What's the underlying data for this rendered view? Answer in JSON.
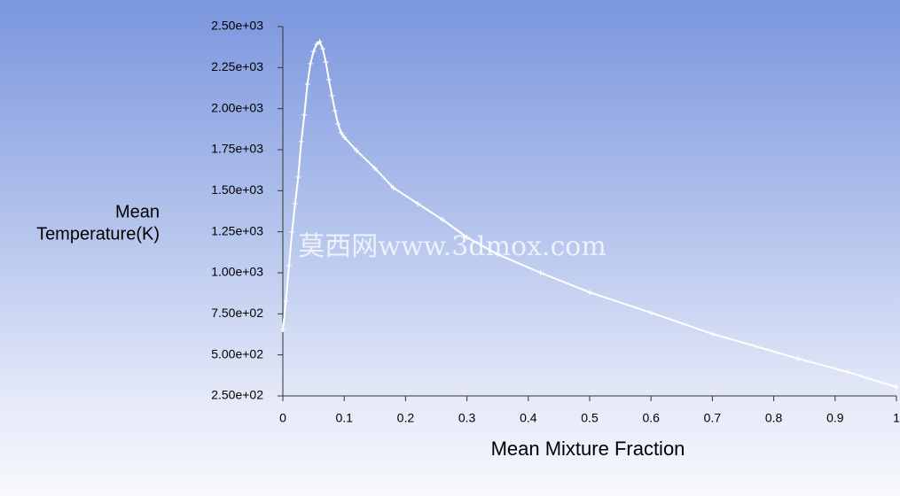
{
  "chart_data": {
    "type": "line",
    "x_label": "Mean Mixture Fraction",
    "y_label": [
      "Mean",
      "Temperature(K)"
    ],
    "watermark": "莫西网www.3dmox.com",
    "x": [
      0,
      0.005,
      0.01,
      0.015,
      0.02,
      0.025,
      0.03,
      0.035,
      0.04,
      0.045,
      0.05,
      0.055,
      0.06,
      0.065,
      0.07,
      0.075,
      0.08,
      0.085,
      0.09,
      0.095,
      0.1,
      0.12,
      0.15,
      0.18,
      0.22,
      0.26,
      0.3,
      0.35,
      0.42,
      0.5,
      0.6,
      0.7,
      0.84,
      0.92,
      1
    ],
    "values": [
      655,
      827,
      1043,
      1248,
      1421,
      1583,
      1799,
      1961,
      2149,
      2274,
      2349,
      2392,
      2408,
      2365,
      2284,
      2176,
      2079,
      1987,
      1907,
      1853,
      1826,
      1745,
      1637,
      1518,
      1421,
      1324,
      1216,
      1113,
      1000,
      881,
      757,
      628,
      477,
      396,
      304
    ],
    "color": "#ffffff",
    "xlim": [
      0,
      1
    ],
    "xticks": [
      0,
      0.1,
      0.2,
      0.3,
      0.4,
      0.5,
      0.6,
      0.7,
      0.8,
      0.9,
      1
    ],
    "ylim": [
      250,
      2500
    ],
    "yticks": [
      {
        "value": 250,
        "label": "2.50e+02"
      },
      {
        "value": 500,
        "label": "5.00e+02"
      },
      {
        "value": 750,
        "label": "7.50e+02"
      },
      {
        "value": 1000,
        "label": "1.00e+03"
      },
      {
        "value": 1250,
        "label": "1.25e+03"
      },
      {
        "value": 1500,
        "label": "1.50e+03"
      },
      {
        "value": 1750,
        "label": "1.75e+03"
      },
      {
        "value": 2000,
        "label": "2.00e+03"
      },
      {
        "value": 2250,
        "label": "2.25e+03"
      },
      {
        "value": 2500,
        "label": "2.50e+03"
      }
    ]
  }
}
